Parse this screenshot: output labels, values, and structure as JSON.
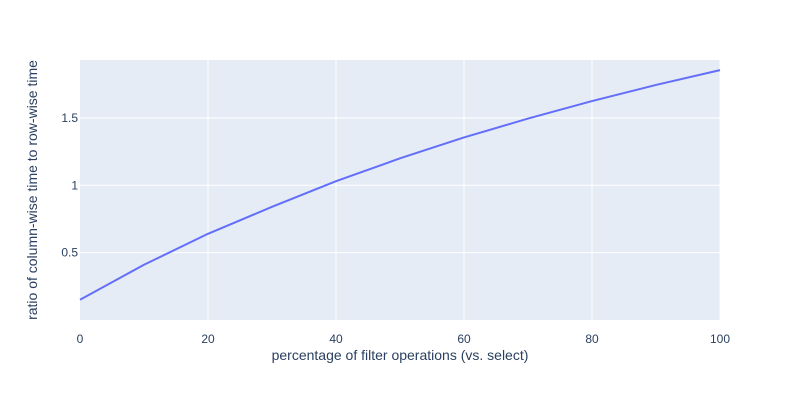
{
  "chart_data": {
    "type": "line",
    "title": "",
    "xlabel": "percentage of filter operations (vs. select)",
    "ylabel": "ratio of column-wise time to row-wise time",
    "xlim": [
      0,
      100
    ],
    "ylim": [
      0,
      1.93
    ],
    "x_ticks": [
      0,
      20,
      40,
      60,
      80,
      100
    ],
    "y_ticks": [
      0.5,
      1,
      1.5
    ],
    "x_tick_labels": [
      "0",
      "20",
      "40",
      "60",
      "80",
      "100"
    ],
    "y_tick_labels": [
      "0.5",
      "1",
      "1.5"
    ],
    "grid": true,
    "series": [
      {
        "x": [
          0,
          10,
          20,
          30,
          40,
          50,
          60,
          70,
          80,
          90,
          100
        ],
        "y": [
          0.15,
          0.41,
          0.64,
          0.84,
          1.03,
          1.2,
          1.355,
          1.495,
          1.625,
          1.745,
          1.855
        ]
      }
    ],
    "colors": {
      "plot_bg": "#e5ecf6",
      "grid": "#ffffff",
      "line": "#636efa",
      "text": "#2a3f5f"
    }
  }
}
